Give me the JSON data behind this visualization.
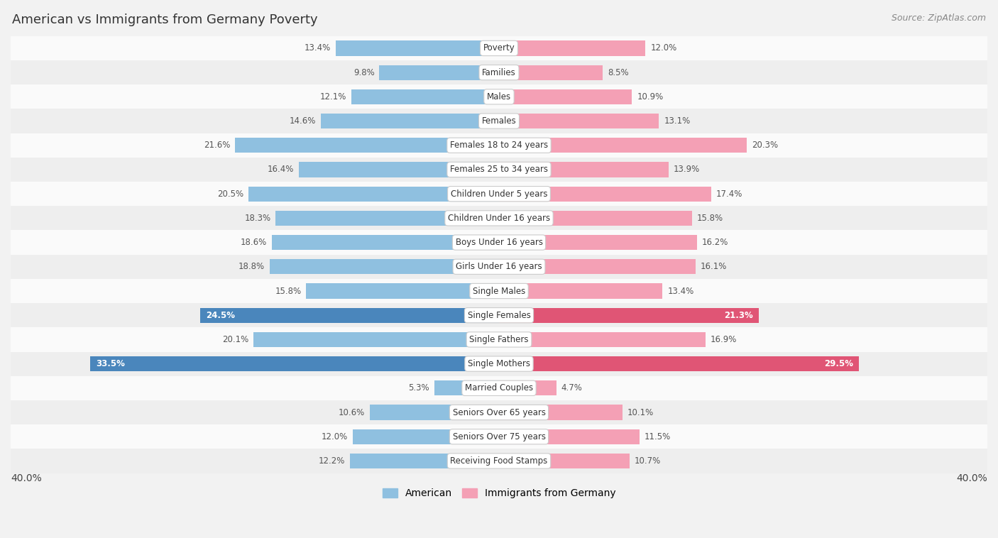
{
  "title": "American vs Immigrants from Germany Poverty",
  "source": "Source: ZipAtlas.com",
  "categories": [
    "Poverty",
    "Families",
    "Males",
    "Females",
    "Females 18 to 24 years",
    "Females 25 to 34 years",
    "Children Under 5 years",
    "Children Under 16 years",
    "Boys Under 16 years",
    "Girls Under 16 years",
    "Single Males",
    "Single Females",
    "Single Fathers",
    "Single Mothers",
    "Married Couples",
    "Seniors Over 65 years",
    "Seniors Over 75 years",
    "Receiving Food Stamps"
  ],
  "american": [
    13.4,
    9.8,
    12.1,
    14.6,
    21.6,
    16.4,
    20.5,
    18.3,
    18.6,
    18.8,
    15.8,
    24.5,
    20.1,
    33.5,
    5.3,
    10.6,
    12.0,
    12.2
  ],
  "germany": [
    12.0,
    8.5,
    10.9,
    13.1,
    20.3,
    13.9,
    17.4,
    15.8,
    16.2,
    16.1,
    13.4,
    21.3,
    16.9,
    29.5,
    4.7,
    10.1,
    11.5,
    10.7
  ],
  "american_color": "#8fc0e0",
  "germany_color": "#f4a0b5",
  "american_highlight_color": "#4a86bc",
  "germany_highlight_color": "#e05575",
  "highlight_indices": [
    11,
    13
  ],
  "xlim": 40.0,
  "bar_height": 0.62,
  "background_color": "#f2f2f2",
  "row_bg_colors": [
    "#fafafa",
    "#eeeeee"
  ]
}
